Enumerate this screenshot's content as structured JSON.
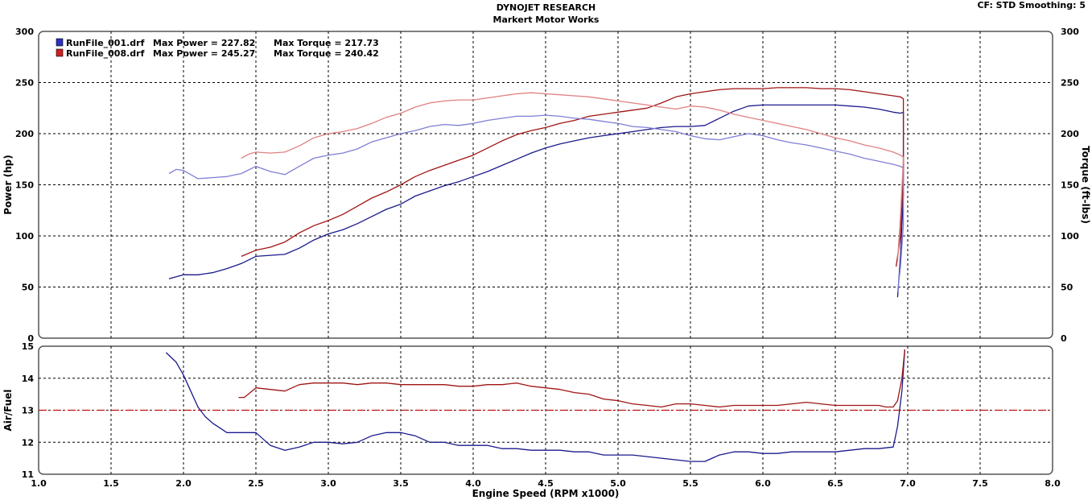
{
  "header": {
    "title": "DYNOJET RESEARCH",
    "subtitle": "Markert Motor Works",
    "cf_label": "CF: STD  Smoothing: 5"
  },
  "colors": {
    "run1": "#1a1a8c",
    "run1_torque": "#7f7fd6",
    "run8": "#a01414",
    "run8_torque": "#e08080",
    "afr_ref": "#c01010"
  },
  "chart_data": [
    {
      "type": "line",
      "xlabel": "",
      "ylabel": "Power (hp)",
      "y2label": "Torque (ft-lbs)",
      "xlim": [
        1.0,
        8.0
      ],
      "ylim": [
        0,
        300
      ],
      "y2lim": [
        0,
        300
      ],
      "yticks": [
        0,
        50,
        100,
        150,
        200,
        250,
        300
      ],
      "grid": true,
      "legend_position": "top-left",
      "legend": [
        {
          "file": "RunFile_001.drf",
          "power_text": "Max Power = 227.82",
          "torque_text": "Max Torque = 217.73",
          "color": "#3030c0"
        },
        {
          "file": "RunFile_008.drf",
          "power_text": "Max Power = 245.27",
          "torque_text": "Max Torque = 240.42",
          "color": "#d02020"
        }
      ],
      "series": [
        {
          "name": "RunFile_001.drf",
          "axis": "left",
          "color": "#1a1a8c",
          "x": [
            1.9,
            2.0,
            2.1,
            2.2,
            2.3,
            2.4,
            2.5,
            2.6,
            2.7,
            2.8,
            2.9,
            3.0,
            3.1,
            3.2,
            3.3,
            3.4,
            3.5,
            3.6,
            3.7,
            3.8,
            3.9,
            4.0,
            4.1,
            4.2,
            4.3,
            4.4,
            4.5,
            4.6,
            4.7,
            4.8,
            4.9,
            5.0,
            5.1,
            5.2,
            5.3,
            5.4,
            5.5,
            5.6,
            5.7,
            5.8,
            5.9,
            6.0,
            6.1,
            6.2,
            6.3,
            6.4,
            6.5,
            6.6,
            6.7,
            6.8,
            6.9,
            6.95,
            6.97,
            6.97,
            6.95,
            6.93
          ],
          "y": [
            58,
            62,
            62,
            64,
            68,
            73,
            80,
            81,
            82,
            88,
            96,
            102,
            106,
            112,
            119,
            126,
            131,
            139,
            144,
            149,
            153,
            158,
            163,
            169,
            175,
            181,
            186,
            190,
            193,
            196,
            198,
            200,
            202,
            204,
            206,
            207,
            207,
            208,
            215,
            222,
            227,
            228,
            228,
            228,
            228,
            228,
            228,
            227,
            226,
            224,
            221,
            220,
            221,
            140,
            80,
            40
          ]
        },
        {
          "name": "RunFile_008.drf",
          "axis": "left",
          "color": "#a01414",
          "x": [
            2.4,
            2.5,
            2.6,
            2.7,
            2.8,
            2.9,
            3.0,
            3.1,
            3.2,
            3.3,
            3.4,
            3.5,
            3.6,
            3.7,
            3.8,
            3.9,
            4.0,
            4.1,
            4.2,
            4.3,
            4.4,
            4.5,
            4.6,
            4.7,
            4.8,
            4.9,
            5.0,
            5.1,
            5.2,
            5.3,
            5.4,
            5.5,
            5.6,
            5.7,
            5.8,
            5.9,
            6.0,
            6.1,
            6.2,
            6.3,
            6.4,
            6.5,
            6.6,
            6.7,
            6.8,
            6.9,
            6.95,
            6.97,
            6.97,
            6.95,
            6.92
          ],
          "y": [
            80,
            86,
            89,
            94,
            103,
            110,
            115,
            121,
            129,
            137,
            143,
            150,
            158,
            164,
            169,
            174,
            179,
            186,
            193,
            199,
            203,
            206,
            210,
            213,
            217,
            219,
            221,
            223,
            225,
            230,
            236,
            239,
            241,
            243,
            244,
            244,
            244,
            245,
            245,
            245,
            244,
            244,
            243,
            241,
            239,
            237,
            236,
            234,
            160,
            100,
            70
          ]
        },
        {
          "name": "RunFile_001.drf",
          "axis": "right",
          "color": "#7f7fd6",
          "x": [
            1.9,
            1.95,
            2.0,
            2.1,
            2.2,
            2.3,
            2.4,
            2.5,
            2.6,
            2.7,
            2.8,
            2.9,
            3.0,
            3.1,
            3.2,
            3.3,
            3.4,
            3.5,
            3.6,
            3.7,
            3.8,
            3.9,
            4.0,
            4.1,
            4.2,
            4.3,
            4.4,
            4.5,
            4.6,
            4.7,
            4.8,
            4.9,
            5.0,
            5.1,
            5.2,
            5.3,
            5.4,
            5.5,
            5.6,
            5.7,
            5.8,
            5.9,
            6.0,
            6.1,
            6.2,
            6.3,
            6.4,
            6.5,
            6.6,
            6.7,
            6.8,
            6.9,
            6.95,
            6.97,
            6.97,
            6.95,
            6.93
          ],
          "y": [
            161,
            165,
            164,
            156,
            157,
            158,
            161,
            168,
            163,
            160,
            168,
            176,
            179,
            181,
            185,
            192,
            196,
            200,
            203,
            207,
            209,
            208,
            210,
            213,
            215,
            217,
            217,
            218,
            217,
            215,
            214,
            212,
            210,
            207,
            206,
            204,
            202,
            198,
            195,
            194,
            197,
            200,
            198,
            194,
            191,
            189,
            186,
            183,
            180,
            176,
            173,
            170,
            168,
            166,
            110,
            70,
            45
          ]
        },
        {
          "name": "RunFile_008.drf",
          "axis": "right",
          "color": "#e08080",
          "x": [
            2.4,
            2.45,
            2.5,
            2.6,
            2.7,
            2.8,
            2.9,
            3.0,
            3.1,
            3.2,
            3.3,
            3.4,
            3.5,
            3.6,
            3.7,
            3.8,
            3.9,
            4.0,
            4.1,
            4.2,
            4.3,
            4.4,
            4.5,
            4.6,
            4.7,
            4.8,
            4.9,
            5.0,
            5.1,
            5.2,
            5.3,
            5.4,
            5.5,
            5.6,
            5.7,
            5.8,
            5.9,
            6.0,
            6.1,
            6.2,
            6.3,
            6.4,
            6.5,
            6.6,
            6.7,
            6.8,
            6.9,
            6.95,
            6.97,
            6.97,
            6.95,
            6.93
          ],
          "y": [
            176,
            180,
            182,
            181,
            182,
            188,
            196,
            200,
            202,
            205,
            210,
            216,
            220,
            226,
            230,
            232,
            233,
            233,
            235,
            237,
            239,
            240,
            239,
            238,
            237,
            236,
            234,
            232,
            230,
            228,
            226,
            224,
            227,
            226,
            223,
            219,
            216,
            213,
            210,
            207,
            204,
            200,
            196,
            193,
            189,
            186,
            182,
            179,
            177,
            175,
            120,
            75
          ]
        }
      ]
    },
    {
      "type": "line",
      "xlabel": "Engine Speed (RPM x1000)",
      "ylabel": "Air/Fuel",
      "xlim": [
        1.0,
        8.0
      ],
      "ylim": [
        11,
        15
      ],
      "yticks": [
        11,
        12,
        13,
        14,
        15
      ],
      "xticks": [
        "1.0",
        "1.5",
        "2.0",
        "2.5",
        "3.0",
        "3.5",
        "4.0",
        "4.5",
        "5.0",
        "5.5",
        "6.0",
        "6.5",
        "7.0",
        "7.5",
        "8.0"
      ],
      "grid": true,
      "reference_line": {
        "y": 13.0,
        "color": "#c01010",
        "style": "dash-dot"
      },
      "series": [
        {
          "name": "RunFile_001.drf",
          "color": "#1a1a8c",
          "x": [
            1.88,
            1.95,
            2.0,
            2.05,
            2.1,
            2.15,
            2.2,
            2.3,
            2.4,
            2.5,
            2.55,
            2.6,
            2.7,
            2.8,
            2.9,
            3.0,
            3.1,
            3.2,
            3.3,
            3.4,
            3.5,
            3.6,
            3.7,
            3.8,
            3.9,
            4.0,
            4.1,
            4.2,
            4.3,
            4.4,
            4.5,
            4.6,
            4.7,
            4.8,
            4.9,
            5.0,
            5.1,
            5.2,
            5.3,
            5.4,
            5.5,
            5.6,
            5.7,
            5.8,
            5.9,
            6.0,
            6.1,
            6.2,
            6.3,
            6.4,
            6.5,
            6.6,
            6.7,
            6.8,
            6.9,
            6.93,
            6.96,
            6.98
          ],
          "y": [
            14.8,
            14.5,
            14.1,
            13.6,
            13.1,
            12.8,
            12.6,
            12.3,
            12.3,
            12.3,
            12.1,
            11.9,
            11.75,
            11.85,
            12.0,
            12.0,
            11.95,
            12.0,
            12.2,
            12.3,
            12.3,
            12.2,
            12.0,
            12.0,
            11.9,
            11.9,
            11.9,
            11.8,
            11.8,
            11.75,
            11.75,
            11.75,
            11.7,
            11.7,
            11.6,
            11.6,
            11.6,
            11.55,
            11.5,
            11.45,
            11.4,
            11.4,
            11.6,
            11.7,
            11.7,
            11.65,
            11.65,
            11.7,
            11.7,
            11.7,
            11.7,
            11.75,
            11.8,
            11.8,
            11.85,
            12.5,
            13.6,
            14.9
          ]
        },
        {
          "name": "RunFile_008.drf",
          "color": "#a01414",
          "x": [
            2.38,
            2.42,
            2.5,
            2.6,
            2.7,
            2.8,
            2.9,
            3.0,
            3.1,
            3.2,
            3.3,
            3.4,
            3.5,
            3.6,
            3.7,
            3.8,
            3.9,
            4.0,
            4.1,
            4.2,
            4.3,
            4.4,
            4.5,
            4.6,
            4.7,
            4.8,
            4.9,
            5.0,
            5.1,
            5.2,
            5.3,
            5.4,
            5.5,
            5.6,
            5.7,
            5.8,
            5.9,
            6.0,
            6.1,
            6.2,
            6.3,
            6.4,
            6.5,
            6.6,
            6.7,
            6.8,
            6.85,
            6.9,
            6.93,
            6.96,
            6.98
          ],
          "y": [
            13.4,
            13.4,
            13.7,
            13.65,
            13.6,
            13.8,
            13.85,
            13.85,
            13.85,
            13.8,
            13.85,
            13.85,
            13.8,
            13.8,
            13.8,
            13.8,
            13.75,
            13.75,
            13.8,
            13.8,
            13.85,
            13.75,
            13.7,
            13.65,
            13.55,
            13.5,
            13.35,
            13.3,
            13.2,
            13.15,
            13.1,
            13.2,
            13.2,
            13.15,
            13.1,
            13.15,
            13.15,
            13.15,
            13.15,
            13.2,
            13.25,
            13.2,
            13.15,
            13.15,
            13.15,
            13.15,
            13.1,
            13.1,
            13.3,
            14.0,
            14.9
          ]
        }
      ]
    }
  ]
}
